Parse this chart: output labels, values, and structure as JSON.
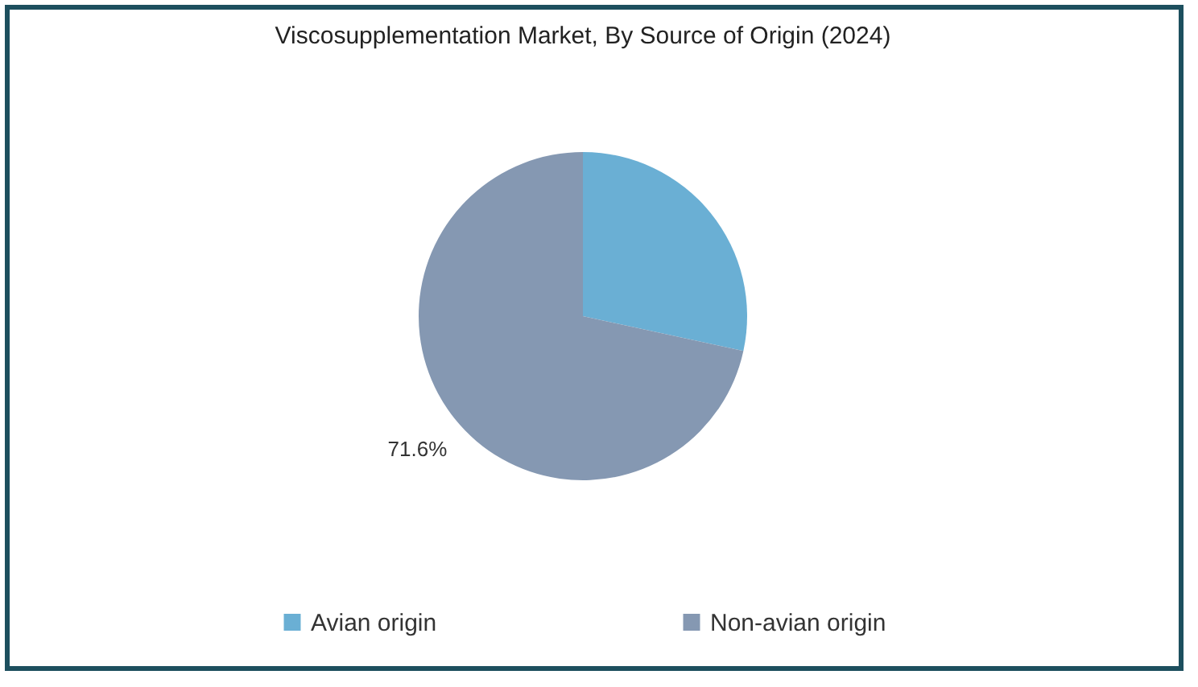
{
  "chart_data": {
    "type": "pie",
    "title": "Viscosupplementation Market, By Source of Origin (2024)",
    "categories": [
      "Avian origin",
      "Non-avian origin"
    ],
    "values": [
      28.4,
      71.6
    ],
    "colors": [
      "#6aafd4",
      "#8598b2"
    ],
    "value_labels": [
      null,
      "71.6%"
    ],
    "legend": "bottom"
  }
}
